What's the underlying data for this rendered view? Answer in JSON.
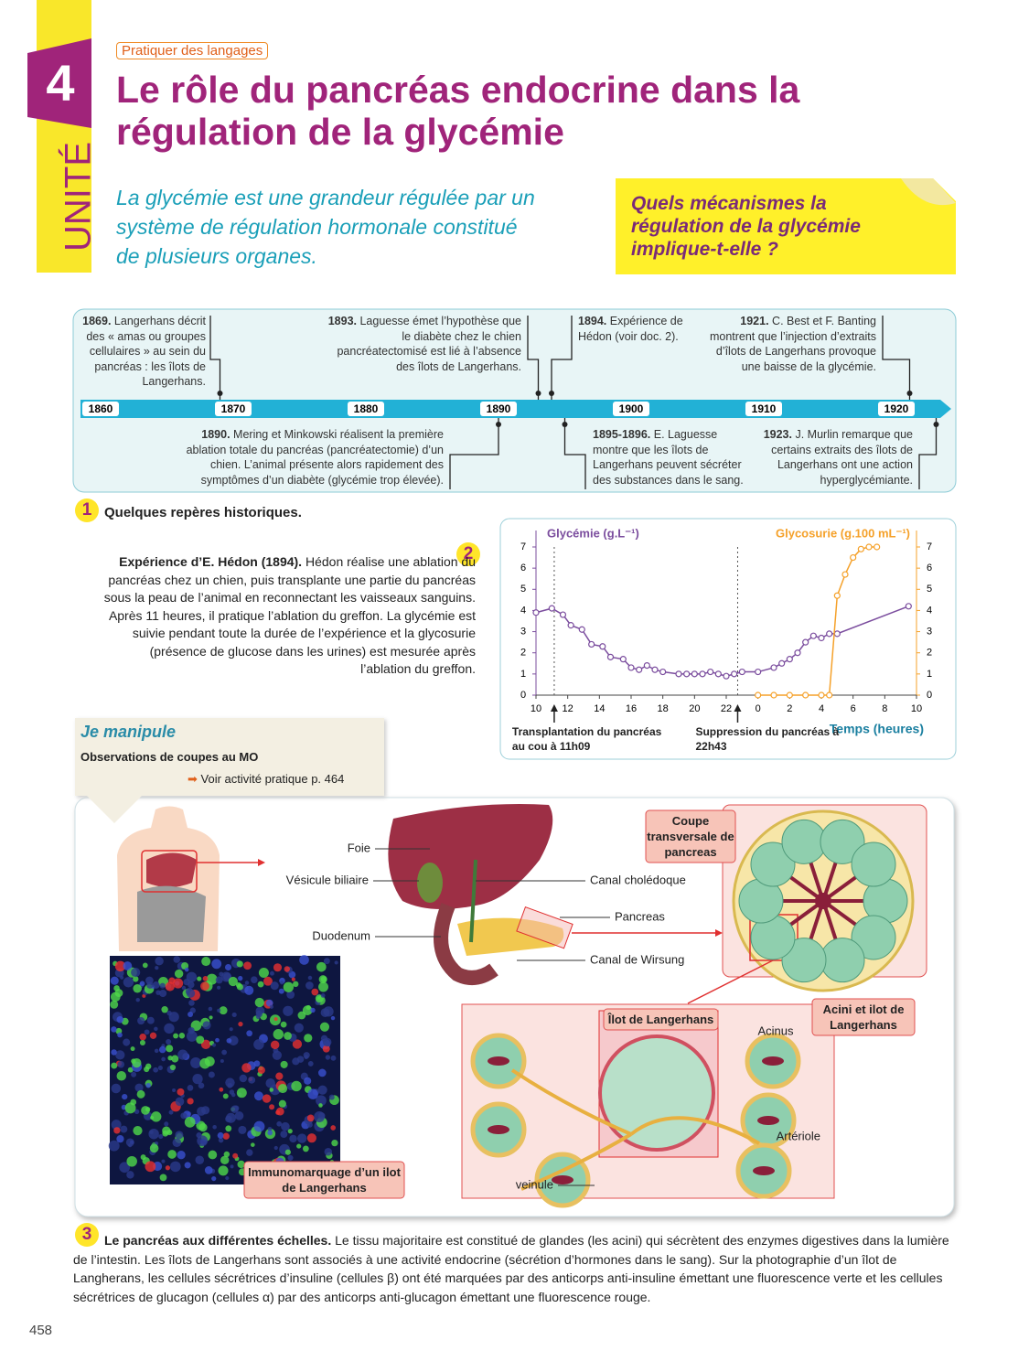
{
  "header": {
    "unit_label": "UNITÉ",
    "unit_number": "4",
    "tag": "Pratiquer des langages",
    "title": "Le rôle du pancréas endocrine dans la régulation de la glycémie",
    "intro": "La glycémie est une grandeur régulée par un système de régulation hormonale constitué de plusieurs organes.",
    "question": "Quels mécanismes la régulation de la glycémie implique-t-elle ?"
  },
  "timeline": {
    "ticks": [
      1860,
      1870,
      1880,
      1890,
      1900,
      1910,
      1920
    ],
    "events": [
      {
        "year": {
          "value": 1869,
          "label": "1869."
        },
        "text": "Langerhans décrit des « amas ou groupes cellulaires » au sein du pancréas : les îlots de Langerhans."
      },
      {
        "year": {
          "value": 1890,
          "label": "1890."
        },
        "text": "Mering et Minkowski réalisent la première ablation totale du pancréas (pancréatectomie) d’un chien. L’animal présente alors rapidement des symptômes d’un diabète (glycémie trop élevée)."
      },
      {
        "year": {
          "value": 1893,
          "label": "1893."
        },
        "text": "Laguesse émet l’hypothèse que le diabète chez le chien pancréatectomisé est lié à l’absence des îlots de Langerhans."
      },
      {
        "year": {
          "value": 1894,
          "label": "1894."
        },
        "text": "Expérience de Hédon (voir doc. 2)."
      },
      {
        "year": {
          "value": 1895,
          "label": "1895-1896."
        },
        "text": "E. Laguesse montre que les îlots de Langerhans peuvent sécréter des substances dans le sang."
      },
      {
        "year": {
          "value": 1921,
          "label": "1921."
        },
        "text": "C. Best et F. Banting montrent que l’injection d’extraits d’îlots de Langerhans provoque une baisse de la glycémie."
      },
      {
        "year": {
          "value": 1923,
          "label": "1923."
        },
        "text": "J. Murlin remarque que certains extraits des îlots de Langerhans ont une action hyperglycémiante."
      }
    ],
    "doc_number": "1",
    "caption": "Quelques repères historiques."
  },
  "doc2": {
    "doc_number": "2",
    "text_title": "Expérience d’E. Hédon (1894).",
    "text": "Hédon réalise une ablation du pancréas chez un chien, puis transplante une partie du pancréas sous la peau de l’animal en reconnectant les vaisseaux sanguins. Après 11 heures, il pratique l’ablation du greffon. La glycémie est suivie pendant toute la durée de l’expérience et la glycosurie (présence de glucose dans les urines) est mesurée après l’ablation du greffon."
  },
  "chart_data": {
    "type": "line",
    "ylabel": "Glycémie (g.L⁻¹)",
    "y2label": "Glycosurie (g.100 mL⁻¹)",
    "xlabel": "Temps (heures)",
    "xlim": [
      10,
      34
    ],
    "xticks": [
      10,
      12,
      14,
      16,
      18,
      20,
      22,
      {
        "value": 24,
        "label": "0"
      },
      {
        "value": 26,
        "label": "2"
      },
      {
        "value": 28,
        "label": "4"
      },
      {
        "value": 30,
        "label": "6"
      },
      {
        "value": 32,
        "label": "8"
      },
      {
        "value": 34,
        "label": "10"
      }
    ],
    "ylim": [
      0,
      7
    ],
    "yticks": [
      0,
      1,
      2,
      3,
      4,
      5,
      6,
      7
    ],
    "y2lim": [
      0,
      7
    ],
    "y2ticks": [
      0,
      1,
      2,
      3,
      4,
      5,
      6,
      7
    ],
    "series": [
      {
        "name": "Glycémie",
        "color": "#7b4d9e",
        "x": [
          10,
          11,
          11.7,
          12.2,
          12.9,
          13.5,
          14.2,
          14.7,
          15.5,
          16,
          16.5,
          17,
          17.5,
          18,
          19,
          19.5,
          20,
          20.5,
          21,
          21.5,
          22,
          22.5,
          23,
          24,
          25,
          25.5,
          26,
          26.5,
          27,
          27.5,
          28,
          28.5,
          29,
          33.5
        ],
        "values": [
          3.9,
          4.1,
          3.8,
          3.3,
          3.1,
          2.4,
          2.3,
          1.8,
          1.7,
          1.3,
          1.2,
          1.4,
          1.2,
          1.1,
          1.0,
          1.0,
          1.0,
          1.0,
          1.1,
          1.0,
          0.9,
          1.0,
          1.1,
          1.1,
          1.3,
          1.5,
          1.7,
          2.0,
          2.5,
          2.8,
          2.7,
          2.9,
          2.9,
          4.2
        ]
      },
      {
        "name": "Glycosurie",
        "color": "#f5a12a",
        "axis": "y2",
        "x": [
          24,
          25,
          26,
          27,
          28,
          28.5,
          29,
          29.5,
          30,
          30.5,
          31,
          31.5
        ],
        "values": [
          0,
          0,
          0,
          0,
          0,
          0,
          4.7,
          5.7,
          6.5,
          6.9,
          7.0,
          7.0
        ]
      }
    ],
    "annotations": [
      {
        "x": 11.15,
        "text": "Transplantation du pancréas au cou à 11h09"
      },
      {
        "x": 22.72,
        "text": "Suppression du pancréas à 22h43"
      }
    ]
  },
  "manipule": {
    "title": "Je manipule",
    "subtitle": "Observations de coupes au MO",
    "link": "Voir activité pratique p. 464"
  },
  "doc3": {
    "doc_number": "3",
    "labels": {
      "foie": "Foie",
      "vesicule": "Vésicule biliaire",
      "duodenum": "Duodenum",
      "choledoque": "Canal cholédoque",
      "pancreas": "Pancreas",
      "wirsung": "Canal de Wirsung",
      "coupe": "Coupe transversale de pancreas",
      "acini": "Acini et ilot de Langerhans",
      "ilot": "Îlot de Langerhans",
      "acinus": "Acinus",
      "arteriole": "Artériole",
      "veinule": "veinule",
      "immuno": "Immunomarquage d’un ilot de Langerhans"
    },
    "caption_title": "Le pancréas aux différentes échelles.",
    "caption": "Le tissu majoritaire est constitué de glandes (les acini) qui sécrètent des enzymes digestives dans la lumière de l’intestin. Les îlots de Langerhans sont associés à une activité endocrine (sécrétion d’hormones dans le sang). Sur la photographie d’un îlot de Langherans, les cellules sécrétrices d’insuline (cellules β) ont été marquées par des anticorps anti-insuline émettant une fluorescence verte et les cellules sécrétrices de glucagon (cellules α) par des anticorps anti-glucagon émettant une fluorescence rouge."
  },
  "page_number": "458"
}
